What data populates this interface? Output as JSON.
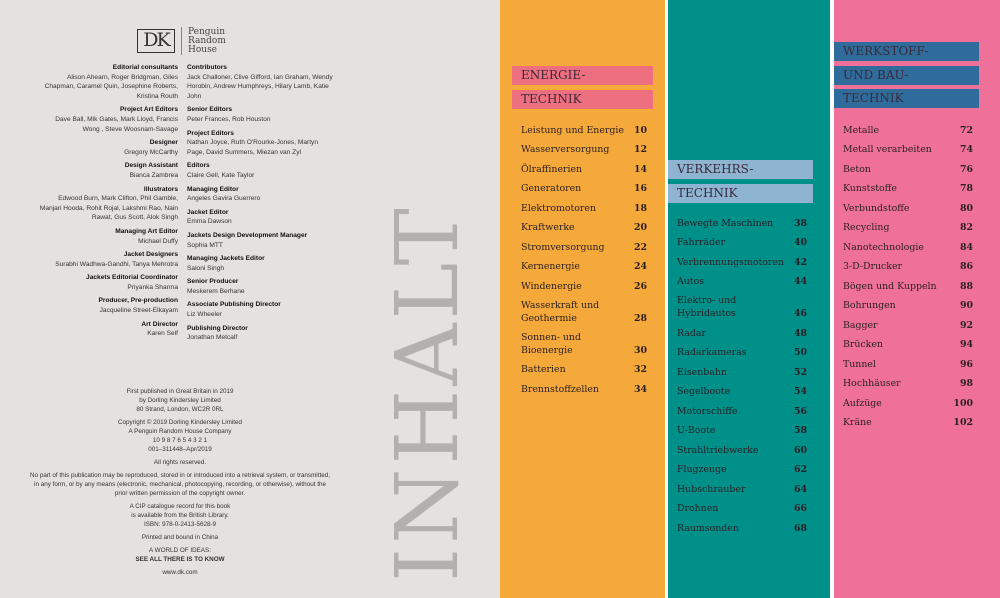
{
  "logo": {
    "dk": "DK",
    "publisher": [
      "Penguin",
      "Random",
      "House"
    ]
  },
  "credits_left": [
    {
      "role": "Editorial consultants",
      "names": "Alison Ahearn, Roger Bridgman, Giles Chapman, Caramel Quin, Josephine Roberts, Kristina Routh"
    },
    {
      "role": "Project Art Editors",
      "names": "Dave Ball, Mik Gates, Mark Lloyd, Francis Wong , Steve Woosnam-Savage"
    },
    {
      "role": "Designer",
      "names": "Gregory McCarthy"
    },
    {
      "role": "Design Assistant",
      "names": "Bianca Zambrea"
    },
    {
      "role": "Illustrators",
      "names": "Edwood Burn, Mark Clifton, Phil Gamble, Manjari Hooda, Rohit Rojal, Lakshmi Rao, Nain Rawat, Gus Scott, Alok Singh"
    },
    {
      "role": "Managing Art Editor",
      "names": "Michael Duffy"
    },
    {
      "role": "Jacket Designers",
      "names": "Surabhi Wadhwa-Gandhi, Tanya Mehrotra"
    },
    {
      "role": "Jackets Editorial Coordinator",
      "names": "Priyanka Sharma"
    },
    {
      "role": "Producer, Pre-production",
      "names": "Jacqueline Street-Elkayam"
    },
    {
      "role": "Art Director",
      "names": "Karen Self"
    }
  ],
  "credits_right": [
    {
      "role": "Contributors",
      "names": "Jack Challoner, Clive Gifford, Ian Graham, Wendy Horobin, Andrew Humphreys, Hilary Lamb, Katie John"
    },
    {
      "role": "Senior Editors",
      "names": "Peter Frances, Rob Houston"
    },
    {
      "role": "Project Editors",
      "names": "Nathan Joyce, Ruth O'Rourke-Jones, Martyn Page, David Summers, Miezan van Zyl"
    },
    {
      "role": "Editors",
      "names": "Claire Gell, Kate Taylor"
    },
    {
      "role": "Managing Editor",
      "names": "Angeles Gavira Guerrero"
    },
    {
      "role": "Jacket Editor",
      "names": "Emma Dawson"
    },
    {
      "role": "Jackets Design Development Manager",
      "names": "Sophia MTT"
    },
    {
      "role": "Managing Jackets Editor",
      "names": "Saloni Singh"
    },
    {
      "role": "Senior Producer",
      "names": "Meskerem Berhane"
    },
    {
      "role": "Associate Publishing Director",
      "names": "Liz Wheeler"
    },
    {
      "role": "Publishing Director",
      "names": "Jonathan Metcalf"
    }
  ],
  "copyright": {
    "p1": [
      "First published in Great Britain in 2019",
      "by Dorling Kindersley Limited",
      "80 Strand, London, WC2R 0RL"
    ],
    "p2": [
      "Copyright © 2019 Dorling Kindersley Limited",
      "A Penguin Random House Company",
      "10 9 8 7 6 5 4 3 2 1",
      "001–311448–Apr/2019"
    ],
    "p3": "All rights reserved.",
    "p4": "No part of this publication may be reproduced, stored in or introduced into a retrieval system, or transmitted, in any form, or by any means (electronic, mechanical, photocopying, recording, or otherwise), without the prior written permission of the copyright owner.",
    "p5": [
      "A CIP catalogue record for this book",
      "is available from the British Library.",
      "ISBN: 978-0-2413-5628-9"
    ],
    "p6": "Printed and bound in China",
    "p7": "A WORLD OF IDEAS:",
    "p8": "SEE ALL THERE IS TO KNOW",
    "p9": "www.dk.com"
  },
  "title": "INHALT",
  "sections": [
    {
      "heading": [
        "ENERGIE-",
        "TECHNIK"
      ],
      "color": "#f5a93b",
      "bar": "#ee6f80",
      "items": [
        [
          "Leistung und Energie",
          "10"
        ],
        [
          "Wasserversorgung",
          "12"
        ],
        [
          "Ölraffinerien",
          "14"
        ],
        [
          "Generatoren",
          "16"
        ],
        [
          "Elektromotoren",
          "18"
        ],
        [
          "Kraftwerke",
          "20"
        ],
        [
          "Stromversorgung",
          "22"
        ],
        [
          "Kernenergie",
          "24"
        ],
        [
          "Windenergie",
          "26"
        ],
        [
          "Wasserkraft und Geothermie",
          "28"
        ],
        [
          "Sonnen- und Bioenergie",
          "30"
        ],
        [
          "Batterien",
          "32"
        ],
        [
          "Brennstoffzellen",
          "34"
        ]
      ]
    },
    {
      "heading": [
        "VERKEHRS-",
        "TECHNIK"
      ],
      "color": "#00908a",
      "bar": "#8fb4d2",
      "items": [
        [
          "Bewegte Maschinen",
          "38"
        ],
        [
          "Fahrräder",
          "40"
        ],
        [
          "Verbrennungsmotoren",
          "42"
        ],
        [
          "Autos",
          "44"
        ],
        [
          "Elektro- und Hybridautos",
          "46"
        ],
        [
          "Radar",
          "48"
        ],
        [
          "Radarkameras",
          "50"
        ],
        [
          "Eisenbahn",
          "52"
        ],
        [
          "Segelboote",
          "54"
        ],
        [
          "Motorschiffe",
          "56"
        ],
        [
          "U-Boote",
          "58"
        ],
        [
          "Strahltriebwerke",
          "60"
        ],
        [
          "Flugzeuge",
          "62"
        ],
        [
          "Hubschrauber",
          "64"
        ],
        [
          "Drohnen",
          "66"
        ],
        [
          "Raumsonden",
          "68"
        ]
      ]
    },
    {
      "heading": [
        "WERKSTOFF-",
        "UND BAU-",
        "TECHNIK"
      ],
      "color": "#ef7199",
      "bar": "#2f6c9b",
      "items": [
        [
          "Metalle",
          "72"
        ],
        [
          "Metall verarbeiten",
          "74"
        ],
        [
          "Beton",
          "76"
        ],
        [
          "Kunststoffe",
          "78"
        ],
        [
          "Verbundstoffe",
          "80"
        ],
        [
          "Recycling",
          "82"
        ],
        [
          "Nanotechnologie",
          "84"
        ],
        [
          "3-D-Drucker",
          "86"
        ],
        [
          "Bögen und Kuppeln",
          "88"
        ],
        [
          "Bohrungen",
          "90"
        ],
        [
          "Bagger",
          "92"
        ],
        [
          "Brücken",
          "94"
        ],
        [
          "Tunnel",
          "96"
        ],
        [
          "Hochhäuser",
          "98"
        ],
        [
          "Aufzüge",
          "100"
        ],
        [
          "Kräne",
          "102"
        ]
      ]
    }
  ]
}
